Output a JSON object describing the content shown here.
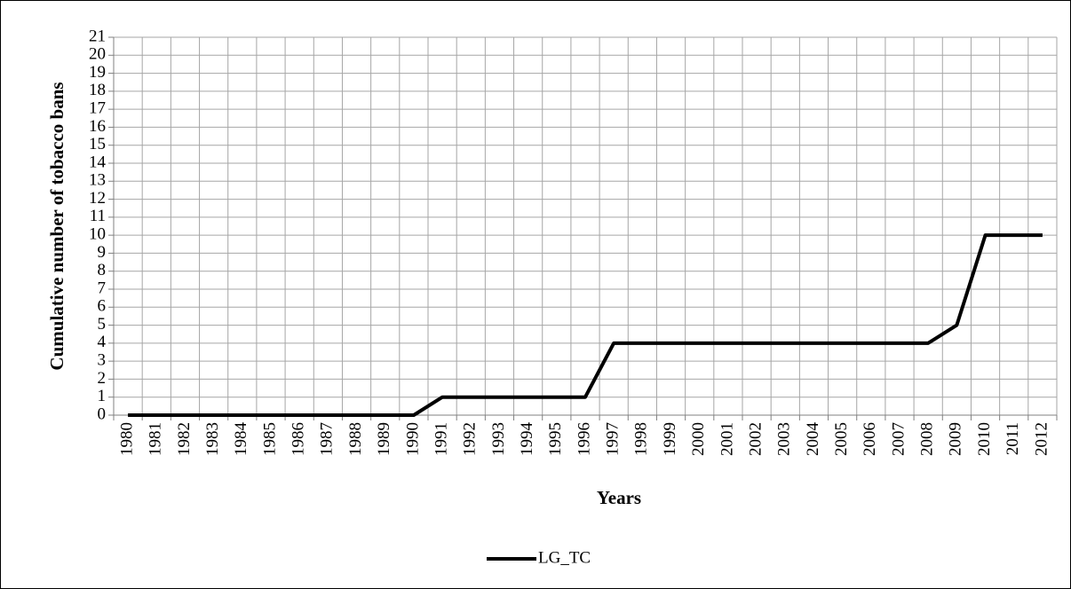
{
  "chart_data": {
    "type": "line",
    "categories": [
      "1980",
      "1981",
      "1982",
      "1983",
      "1984",
      "1985",
      "1986",
      "1987",
      "1988",
      "1989",
      "1990",
      "1991",
      "1992",
      "1993",
      "1994",
      "1995",
      "1996",
      "1997",
      "1998",
      "1999",
      "2000",
      "2001",
      "2002",
      "2003",
      "2004",
      "2005",
      "2006",
      "2007",
      "2008",
      "2009",
      "2010",
      "2011",
      "2012"
    ],
    "series": [
      {
        "name": "LG_TC",
        "color": "#000000",
        "values": [
          0,
          0,
          0,
          0,
          0,
          0,
          0,
          0,
          0,
          0,
          0,
          1,
          1,
          1,
          1,
          1,
          1,
          4,
          4,
          4,
          4,
          4,
          4,
          4,
          4,
          4,
          4,
          4,
          4,
          5,
          10,
          10,
          10
        ]
      }
    ],
    "ylim": [
      0,
      21
    ],
    "yticks": [
      0,
      1,
      2,
      3,
      4,
      5,
      6,
      7,
      8,
      9,
      10,
      11,
      12,
      13,
      14,
      15,
      16,
      17,
      18,
      19,
      20,
      21
    ],
    "xlabel": "Years",
    "ylabel": "Cumulative number of tobacco bans",
    "grid": true,
    "legend": "bottom"
  }
}
